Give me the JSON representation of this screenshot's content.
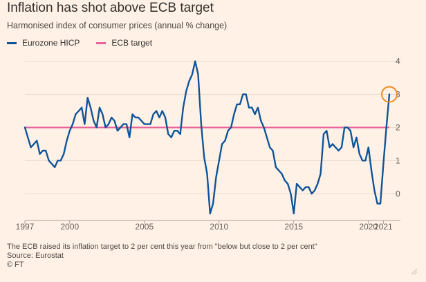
{
  "title": "Inflation has shot above ECB target",
  "subtitle": "Harmonised index of consumer prices (annual % change)",
  "legend": {
    "hicp_label": "Eurozone HICP",
    "target_label": "ECB target"
  },
  "footer": {
    "note": "The ECB raised its inflation target to 2 per cent this year from \"below but close to 2 per cent\"",
    "source": "Source: Eurostat",
    "credit": "© FT"
  },
  "colors": {
    "background": "#fff1e5",
    "hicp": "#0f5499",
    "target": "#e6639b",
    "highlight": "#f08a24",
    "grid": "#e6d9ce"
  },
  "chart_data": {
    "type": "line",
    "title": "Inflation has shot above ECB target",
    "subtitle": "Harmonised index of consumer prices (annual % change)",
    "xlabel": "",
    "ylabel": "",
    "xlim": [
      1997.0,
      2021.4
    ],
    "ylim": [
      -0.6,
      4.2
    ],
    "x_ticks": [
      1997,
      2000,
      2005,
      2010,
      2015,
      2020,
      2021
    ],
    "y_ticks": [
      0,
      1,
      2,
      3,
      4
    ],
    "y_axis_side": "right",
    "grid": true,
    "legend_position": "top-left",
    "highlight_last_point": true,
    "series": [
      {
        "name": "Eurozone HICP",
        "x": [
          1997.0,
          1997.2,
          1997.4,
          1997.6,
          1997.8,
          1998.0,
          1998.2,
          1998.4,
          1998.6,
          1998.8,
          1999.0,
          1999.2,
          1999.4,
          1999.6,
          1999.8,
          2000.0,
          2000.2,
          2000.4,
          2000.6,
          2000.8,
          2001.0,
          2001.2,
          2001.4,
          2001.6,
          2001.8,
          2002.0,
          2002.2,
          2002.4,
          2002.6,
          2002.8,
          2003.0,
          2003.2,
          2003.4,
          2003.6,
          2003.8,
          2004.0,
          2004.2,
          2004.4,
          2004.6,
          2004.8,
          2005.0,
          2005.2,
          2005.4,
          2005.6,
          2005.8,
          2006.0,
          2006.2,
          2006.4,
          2006.6,
          2006.8,
          2007.0,
          2007.2,
          2007.4,
          2007.6,
          2007.8,
          2008.0,
          2008.2,
          2008.4,
          2008.6,
          2008.8,
          2009.0,
          2009.2,
          2009.4,
          2009.6,
          2009.8,
          2010.0,
          2010.2,
          2010.4,
          2010.6,
          2010.8,
          2011.0,
          2011.2,
          2011.4,
          2011.6,
          2011.8,
          2012.0,
          2012.2,
          2012.4,
          2012.6,
          2012.8,
          2013.0,
          2013.2,
          2013.4,
          2013.6,
          2013.8,
          2014.0,
          2014.2,
          2014.4,
          2014.6,
          2014.8,
          2015.0,
          2015.2,
          2015.4,
          2015.6,
          2015.8,
          2016.0,
          2016.2,
          2016.4,
          2016.6,
          2016.8,
          2017.0,
          2017.2,
          2017.4,
          2017.6,
          2017.8,
          2018.0,
          2018.2,
          2018.4,
          2018.6,
          2018.8,
          2019.0,
          2019.2,
          2019.4,
          2019.6,
          2019.8,
          2020.0,
          2020.2,
          2020.4,
          2020.6,
          2020.8,
          2021.0,
          2021.2,
          2021.4
        ],
        "values": [
          2.0,
          1.7,
          1.4,
          1.5,
          1.6,
          1.2,
          1.3,
          1.3,
          1.0,
          0.9,
          0.8,
          1.0,
          1.0,
          1.2,
          1.6,
          1.9,
          2.1,
          2.4,
          2.5,
          2.6,
          2.1,
          2.9,
          2.6,
          2.2,
          2.0,
          2.6,
          2.4,
          2.0,
          2.1,
          2.3,
          2.2,
          1.9,
          2.0,
          2.1,
          2.1,
          1.7,
          2.4,
          2.3,
          2.3,
          2.2,
          2.1,
          2.1,
          2.1,
          2.4,
          2.5,
          2.3,
          2.5,
          2.3,
          1.8,
          1.7,
          1.9,
          1.9,
          1.8,
          2.6,
          3.1,
          3.4,
          3.6,
          4.0,
          3.6,
          2.1,
          1.1,
          0.6,
          -0.6,
          -0.3,
          0.5,
          1.0,
          1.5,
          1.6,
          1.9,
          2.0,
          2.4,
          2.7,
          2.7,
          3.0,
          3.0,
          2.6,
          2.6,
          2.4,
          2.6,
          2.2,
          2.0,
          1.7,
          1.4,
          1.3,
          0.8,
          0.7,
          0.6,
          0.4,
          0.3,
          0.0,
          -0.6,
          0.3,
          0.2,
          0.1,
          0.2,
          0.2,
          0.0,
          0.1,
          0.3,
          0.6,
          1.8,
          1.9,
          1.4,
          1.5,
          1.4,
          1.3,
          1.4,
          2.0,
          2.0,
          1.9,
          1.4,
          1.7,
          1.2,
          1.0,
          1.0,
          1.4,
          0.7,
          0.1,
          -0.3,
          -0.3,
          0.9,
          2.0,
          3.0
        ]
      },
      {
        "name": "ECB target",
        "x": [
          1997.0,
          2021.4
        ],
        "values": [
          2.0,
          2.0
        ]
      }
    ]
  }
}
